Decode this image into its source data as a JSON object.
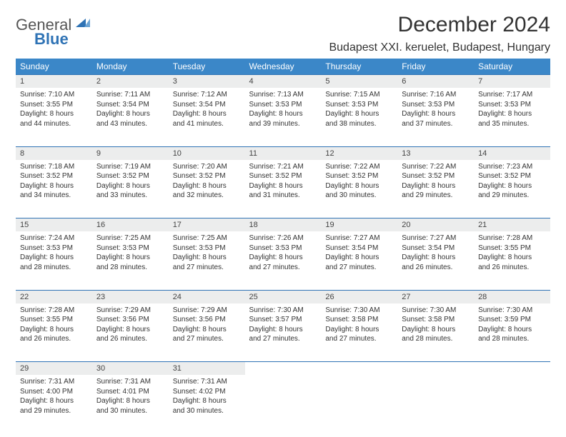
{
  "logo": {
    "text1": "General",
    "text2": "Blue"
  },
  "title": "December 2024",
  "location": "Budapest XXI. keruelet, Budapest, Hungary",
  "colors": {
    "header_bg": "#3b87c8",
    "border": "#2f73b5",
    "daynum_bg": "#eceded",
    "text": "#333333"
  },
  "weekdays": [
    "Sunday",
    "Monday",
    "Tuesday",
    "Wednesday",
    "Thursday",
    "Friday",
    "Saturday"
  ],
  "weeks": [
    {
      "nums": [
        "1",
        "2",
        "3",
        "4",
        "5",
        "6",
        "7"
      ],
      "cells": [
        {
          "sunrise": "Sunrise: 7:10 AM",
          "sunset": "Sunset: 3:55 PM",
          "day1": "Daylight: 8 hours",
          "day2": "and 44 minutes."
        },
        {
          "sunrise": "Sunrise: 7:11 AM",
          "sunset": "Sunset: 3:54 PM",
          "day1": "Daylight: 8 hours",
          "day2": "and 43 minutes."
        },
        {
          "sunrise": "Sunrise: 7:12 AM",
          "sunset": "Sunset: 3:54 PM",
          "day1": "Daylight: 8 hours",
          "day2": "and 41 minutes."
        },
        {
          "sunrise": "Sunrise: 7:13 AM",
          "sunset": "Sunset: 3:53 PM",
          "day1": "Daylight: 8 hours",
          "day2": "and 39 minutes."
        },
        {
          "sunrise": "Sunrise: 7:15 AM",
          "sunset": "Sunset: 3:53 PM",
          "day1": "Daylight: 8 hours",
          "day2": "and 38 minutes."
        },
        {
          "sunrise": "Sunrise: 7:16 AM",
          "sunset": "Sunset: 3:53 PM",
          "day1": "Daylight: 8 hours",
          "day2": "and 37 minutes."
        },
        {
          "sunrise": "Sunrise: 7:17 AM",
          "sunset": "Sunset: 3:53 PM",
          "day1": "Daylight: 8 hours",
          "day2": "and 35 minutes."
        }
      ]
    },
    {
      "nums": [
        "8",
        "9",
        "10",
        "11",
        "12",
        "13",
        "14"
      ],
      "cells": [
        {
          "sunrise": "Sunrise: 7:18 AM",
          "sunset": "Sunset: 3:52 PM",
          "day1": "Daylight: 8 hours",
          "day2": "and 34 minutes."
        },
        {
          "sunrise": "Sunrise: 7:19 AM",
          "sunset": "Sunset: 3:52 PM",
          "day1": "Daylight: 8 hours",
          "day2": "and 33 minutes."
        },
        {
          "sunrise": "Sunrise: 7:20 AM",
          "sunset": "Sunset: 3:52 PM",
          "day1": "Daylight: 8 hours",
          "day2": "and 32 minutes."
        },
        {
          "sunrise": "Sunrise: 7:21 AM",
          "sunset": "Sunset: 3:52 PM",
          "day1": "Daylight: 8 hours",
          "day2": "and 31 minutes."
        },
        {
          "sunrise": "Sunrise: 7:22 AM",
          "sunset": "Sunset: 3:52 PM",
          "day1": "Daylight: 8 hours",
          "day2": "and 30 minutes."
        },
        {
          "sunrise": "Sunrise: 7:22 AM",
          "sunset": "Sunset: 3:52 PM",
          "day1": "Daylight: 8 hours",
          "day2": "and 29 minutes."
        },
        {
          "sunrise": "Sunrise: 7:23 AM",
          "sunset": "Sunset: 3:52 PM",
          "day1": "Daylight: 8 hours",
          "day2": "and 29 minutes."
        }
      ]
    },
    {
      "nums": [
        "15",
        "16",
        "17",
        "18",
        "19",
        "20",
        "21"
      ],
      "cells": [
        {
          "sunrise": "Sunrise: 7:24 AM",
          "sunset": "Sunset: 3:53 PM",
          "day1": "Daylight: 8 hours",
          "day2": "and 28 minutes."
        },
        {
          "sunrise": "Sunrise: 7:25 AM",
          "sunset": "Sunset: 3:53 PM",
          "day1": "Daylight: 8 hours",
          "day2": "and 28 minutes."
        },
        {
          "sunrise": "Sunrise: 7:25 AM",
          "sunset": "Sunset: 3:53 PM",
          "day1": "Daylight: 8 hours",
          "day2": "and 27 minutes."
        },
        {
          "sunrise": "Sunrise: 7:26 AM",
          "sunset": "Sunset: 3:53 PM",
          "day1": "Daylight: 8 hours",
          "day2": "and 27 minutes."
        },
        {
          "sunrise": "Sunrise: 7:27 AM",
          "sunset": "Sunset: 3:54 PM",
          "day1": "Daylight: 8 hours",
          "day2": "and 27 minutes."
        },
        {
          "sunrise": "Sunrise: 7:27 AM",
          "sunset": "Sunset: 3:54 PM",
          "day1": "Daylight: 8 hours",
          "day2": "and 26 minutes."
        },
        {
          "sunrise": "Sunrise: 7:28 AM",
          "sunset": "Sunset: 3:55 PM",
          "day1": "Daylight: 8 hours",
          "day2": "and 26 minutes."
        }
      ]
    },
    {
      "nums": [
        "22",
        "23",
        "24",
        "25",
        "26",
        "27",
        "28"
      ],
      "cells": [
        {
          "sunrise": "Sunrise: 7:28 AM",
          "sunset": "Sunset: 3:55 PM",
          "day1": "Daylight: 8 hours",
          "day2": "and 26 minutes."
        },
        {
          "sunrise": "Sunrise: 7:29 AM",
          "sunset": "Sunset: 3:56 PM",
          "day1": "Daylight: 8 hours",
          "day2": "and 26 minutes."
        },
        {
          "sunrise": "Sunrise: 7:29 AM",
          "sunset": "Sunset: 3:56 PM",
          "day1": "Daylight: 8 hours",
          "day2": "and 27 minutes."
        },
        {
          "sunrise": "Sunrise: 7:30 AM",
          "sunset": "Sunset: 3:57 PM",
          "day1": "Daylight: 8 hours",
          "day2": "and 27 minutes."
        },
        {
          "sunrise": "Sunrise: 7:30 AM",
          "sunset": "Sunset: 3:58 PM",
          "day1": "Daylight: 8 hours",
          "day2": "and 27 minutes."
        },
        {
          "sunrise": "Sunrise: 7:30 AM",
          "sunset": "Sunset: 3:58 PM",
          "day1": "Daylight: 8 hours",
          "day2": "and 28 minutes."
        },
        {
          "sunrise": "Sunrise: 7:30 AM",
          "sunset": "Sunset: 3:59 PM",
          "day1": "Daylight: 8 hours",
          "day2": "and 28 minutes."
        }
      ]
    },
    {
      "nums": [
        "29",
        "30",
        "31",
        "",
        "",
        "",
        ""
      ],
      "cells": [
        {
          "sunrise": "Sunrise: 7:31 AM",
          "sunset": "Sunset: 4:00 PM",
          "day1": "Daylight: 8 hours",
          "day2": "and 29 minutes."
        },
        {
          "sunrise": "Sunrise: 7:31 AM",
          "sunset": "Sunset: 4:01 PM",
          "day1": "Daylight: 8 hours",
          "day2": "and 30 minutes."
        },
        {
          "sunrise": "Sunrise: 7:31 AM",
          "sunset": "Sunset: 4:02 PM",
          "day1": "Daylight: 8 hours",
          "day2": "and 30 minutes."
        },
        null,
        null,
        null,
        null
      ]
    }
  ]
}
